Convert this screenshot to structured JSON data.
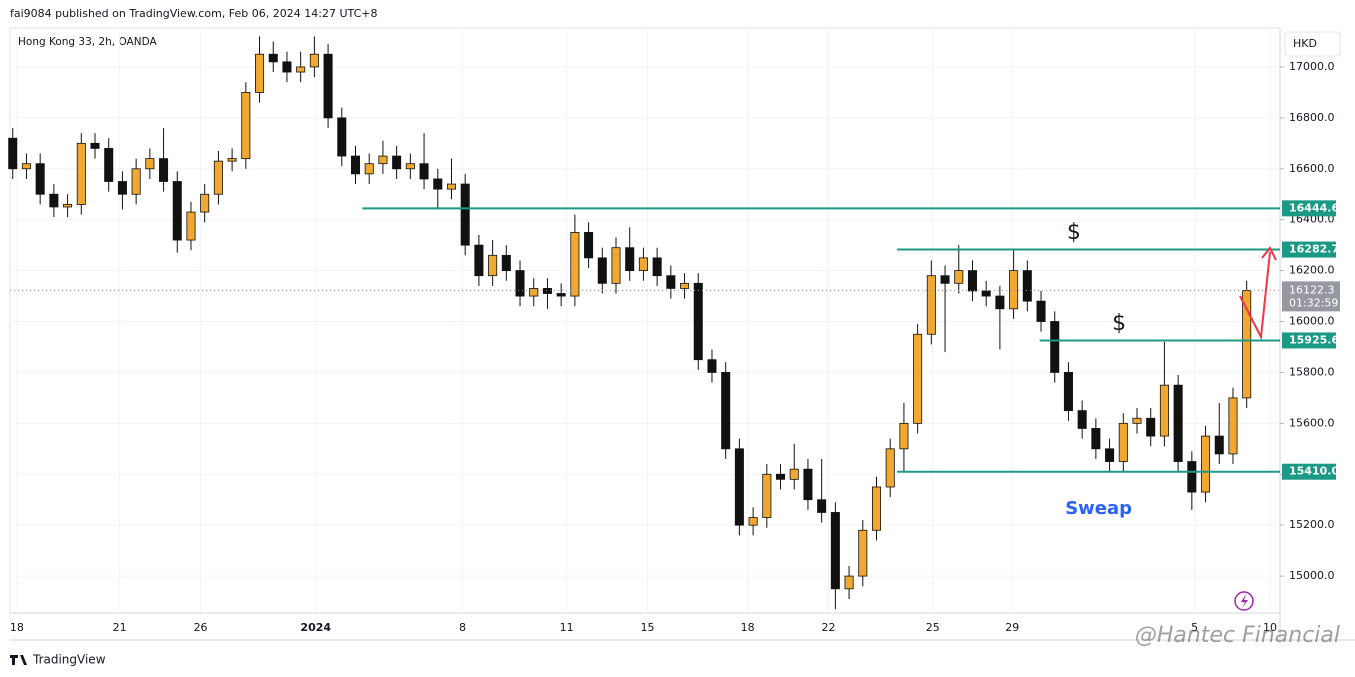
{
  "chart_data": {
    "type": "candlestick",
    "header": "fai9084 published on TradingView.com, Feb 06, 2024 14:27 UTC+8",
    "title": "Hong Kong 33, 2h, OANDA",
    "currency": "HKD",
    "footer": "TradingView",
    "watermark": "@Hantec Financial",
    "countdown": "01:32:59",
    "up_color": "#f0a830",
    "down_color": "#111111",
    "level_color": "#1a9a85",
    "grid": true,
    "x": [
      0,
      1,
      2,
      3,
      4,
      5,
      6,
      7,
      8,
      9,
      10,
      11,
      12,
      13,
      14,
      15,
      16,
      17,
      18,
      19,
      20,
      21,
      22,
      23,
      24,
      25,
      26,
      27,
      28,
      29,
      30,
      31,
      32,
      33,
      34,
      35,
      36,
      37,
      38,
      39,
      40,
      41,
      42,
      43,
      44,
      45,
      46,
      47,
      48,
      49,
      50,
      51,
      52,
      53,
      54,
      55,
      56,
      57,
      58,
      59,
      60,
      61,
      62,
      63,
      64,
      65,
      66,
      67,
      68,
      69,
      70,
      71,
      72,
      73,
      74,
      75,
      76,
      77,
      78,
      79,
      80,
      81,
      82,
      83,
      84,
      85,
      86,
      87,
      88,
      89,
      90
    ],
    "open": [
      16720,
      16600,
      16620,
      16500,
      16450,
      16460,
      16700,
      16680,
      16550,
      16500,
      16600,
      16640,
      16550,
      16320,
      16430,
      16500,
      16630,
      16640,
      16900,
      17050,
      17020,
      16980,
      17000,
      17050,
      16800,
      16650,
      16580,
      16620,
      16650,
      16600,
      16620,
      16560,
      16520,
      16540,
      16300,
      16180,
      16260,
      16200,
      16100,
      16130,
      16110,
      16100,
      16350,
      16250,
      16150,
      16290,
      16200,
      16250,
      16180,
      16130,
      16150,
      15850,
      15800,
      15500,
      15200,
      15230,
      15400,
      15380,
      15420,
      15300,
      15250,
      14950,
      15000,
      15180,
      15350,
      15500,
      15600,
      15950,
      16180,
      16150,
      16200,
      16120,
      16100,
      16050,
      16200,
      16080,
      16000,
      15800,
      15650,
      15580,
      15500,
      15450,
      15600,
      15620,
      15550,
      15750,
      15450,
      15330,
      15550,
      15480,
      15700
    ],
    "high": [
      16760,
      16660,
      16660,
      16540,
      16500,
      16740,
      16740,
      16720,
      16590,
      16640,
      16680,
      16760,
      16590,
      16470,
      16540,
      16670,
      16680,
      16940,
      17120,
      17100,
      17060,
      17060,
      17120,
      17090,
      16840,
      16690,
      16660,
      16710,
      16690,
      16660,
      16740,
      16600,
      16640,
      16580,
      16340,
      16320,
      16300,
      16240,
      16170,
      16170,
      16150,
      16420,
      16390,
      16290,
      16330,
      16370,
      16290,
      16290,
      16220,
      16190,
      16190,
      15890,
      15840,
      15540,
      15270,
      15440,
      15440,
      15520,
      15460,
      15460,
      15290,
      15040,
      15220,
      15390,
      15540,
      15680,
      15990,
      16240,
      16220,
      16300,
      16240,
      16160,
      16140,
      16280,
      16240,
      16120,
      16040,
      15840,
      15690,
      15620,
      15540,
      15640,
      15660,
      15660,
      15920,
      15790,
      15490,
      15590,
      15680,
      15740,
      16160
    ],
    "low": [
      16560,
      16560,
      16460,
      16410,
      16410,
      16420,
      16640,
      16510,
      16440,
      16460,
      16560,
      16510,
      16270,
      16280,
      16390,
      16460,
      16590,
      16600,
      16860,
      16980,
      16940,
      16940,
      16960,
      16760,
      16610,
      16540,
      16540,
      16580,
      16560,
      16560,
      16520,
      16440,
      16480,
      16260,
      16140,
      16140,
      16160,
      16060,
      16060,
      16050,
      16060,
      16060,
      16210,
      16110,
      16110,
      16160,
      16160,
      16140,
      16090,
      16090,
      15810,
      15760,
      15460,
      15160,
      15160,
      15190,
      15340,
      15340,
      15260,
      15210,
      14870,
      14910,
      14960,
      15140,
      15310,
      15410,
      15560,
      15910,
      15880,
      16110,
      16080,
      16060,
      15890,
      16010,
      16040,
      15960,
      15760,
      15610,
      15540,
      15460,
      15410,
      15410,
      15560,
      15510,
      15510,
      15410,
      15260,
      15290,
      15440,
      15440,
      15660
    ],
    "close": [
      16600,
      16620,
      16500,
      16450,
      16460,
      16700,
      16680,
      16550,
      16500,
      16600,
      16640,
      16550,
      16320,
      16430,
      16500,
      16630,
      16640,
      16900,
      17050,
      17020,
      16980,
      17000,
      17050,
      16800,
      16650,
      16580,
      16620,
      16650,
      16600,
      16620,
      16560,
      16520,
      16540,
      16300,
      16180,
      16260,
      16200,
      16100,
      16130,
      16110,
      16100,
      16350,
      16250,
      16150,
      16290,
      16200,
      16250,
      16180,
      16130,
      16150,
      15850,
      15800,
      15500,
      15200,
      15230,
      15400,
      15380,
      15420,
      15300,
      15250,
      14950,
      15000,
      15180,
      15350,
      15500,
      15600,
      15950,
      16180,
      16150,
      16200,
      16120,
      16100,
      16050,
      16200,
      16080,
      16000,
      15800,
      15650,
      15580,
      15500,
      15450,
      15600,
      15620,
      15550,
      15750,
      15450,
      15330,
      15550,
      15480,
      15700,
      16122.3
    ],
    "xlim": [
      -0.2,
      92.43
    ],
    "ylim": [
      14855,
      17153
    ],
    "xticks": [
      {
        "value": 0.3,
        "label": "18"
      },
      {
        "value": 7.8,
        "label": "21"
      },
      {
        "value": 13.7,
        "label": "26"
      },
      {
        "value": 22.1,
        "label": "2024"
      },
      {
        "value": 32.8,
        "label": "8"
      },
      {
        "value": 40.4,
        "label": "11"
      },
      {
        "value": 46.3,
        "label": "15"
      },
      {
        "value": 53.6,
        "label": "18"
      },
      {
        "value": 59.5,
        "label": "22"
      },
      {
        "value": 67.1,
        "label": "25"
      },
      {
        "value": 72.9,
        "label": "29"
      },
      {
        "value": 86.2,
        "label": "5"
      },
      {
        "value": 91.7,
        "label": "10"
      }
    ],
    "yticks": [
      {
        "value": 15000,
        "label": "15000.0"
      },
      {
        "value": 15200,
        "label": "15200.0"
      },
      {
        "value": 15400,
        "label": "15400.0"
      },
      {
        "value": 15600,
        "label": "15600.0"
      },
      {
        "value": 15800,
        "label": "15800.0"
      },
      {
        "value": 16000,
        "label": "16000.0"
      },
      {
        "value": 16200,
        "label": "16200.0"
      },
      {
        "value": 16400,
        "label": "16400.0"
      },
      {
        "value": 16600,
        "label": "16600.0"
      },
      {
        "value": 16800,
        "label": "16800.0"
      },
      {
        "value": 17000,
        "label": "17000.0"
      }
    ],
    "levels": [
      {
        "value": 16444.6,
        "label": "16444.6",
        "x_start": 25.5
      },
      {
        "value": 16282.7,
        "label": "16282.7",
        "x_start": 64.5
      },
      {
        "value": 15925.6,
        "label": "15925.6",
        "x_start": 74.9
      },
      {
        "value": 15410,
        "label": "15410.0",
        "x_start": 64.5
      }
    ],
    "annotations": [
      {
        "text": "$",
        "x": 77.4,
        "y": 16348
      },
      {
        "text": "$",
        "x": 80.7,
        "y": 15990
      },
      {
        "text": "Sweap",
        "x": 79.2,
        "y": 15263
      }
    ]
  }
}
